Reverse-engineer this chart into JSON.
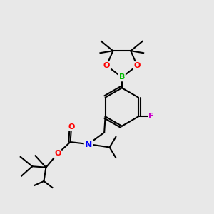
{
  "bg_color": "#e8e8e8",
  "atom_colors": {
    "O": "#ff0000",
    "B": "#00bb00",
    "N": "#0000ff",
    "F": "#cc00cc",
    "C": "#000000",
    "H": "#000000"
  }
}
